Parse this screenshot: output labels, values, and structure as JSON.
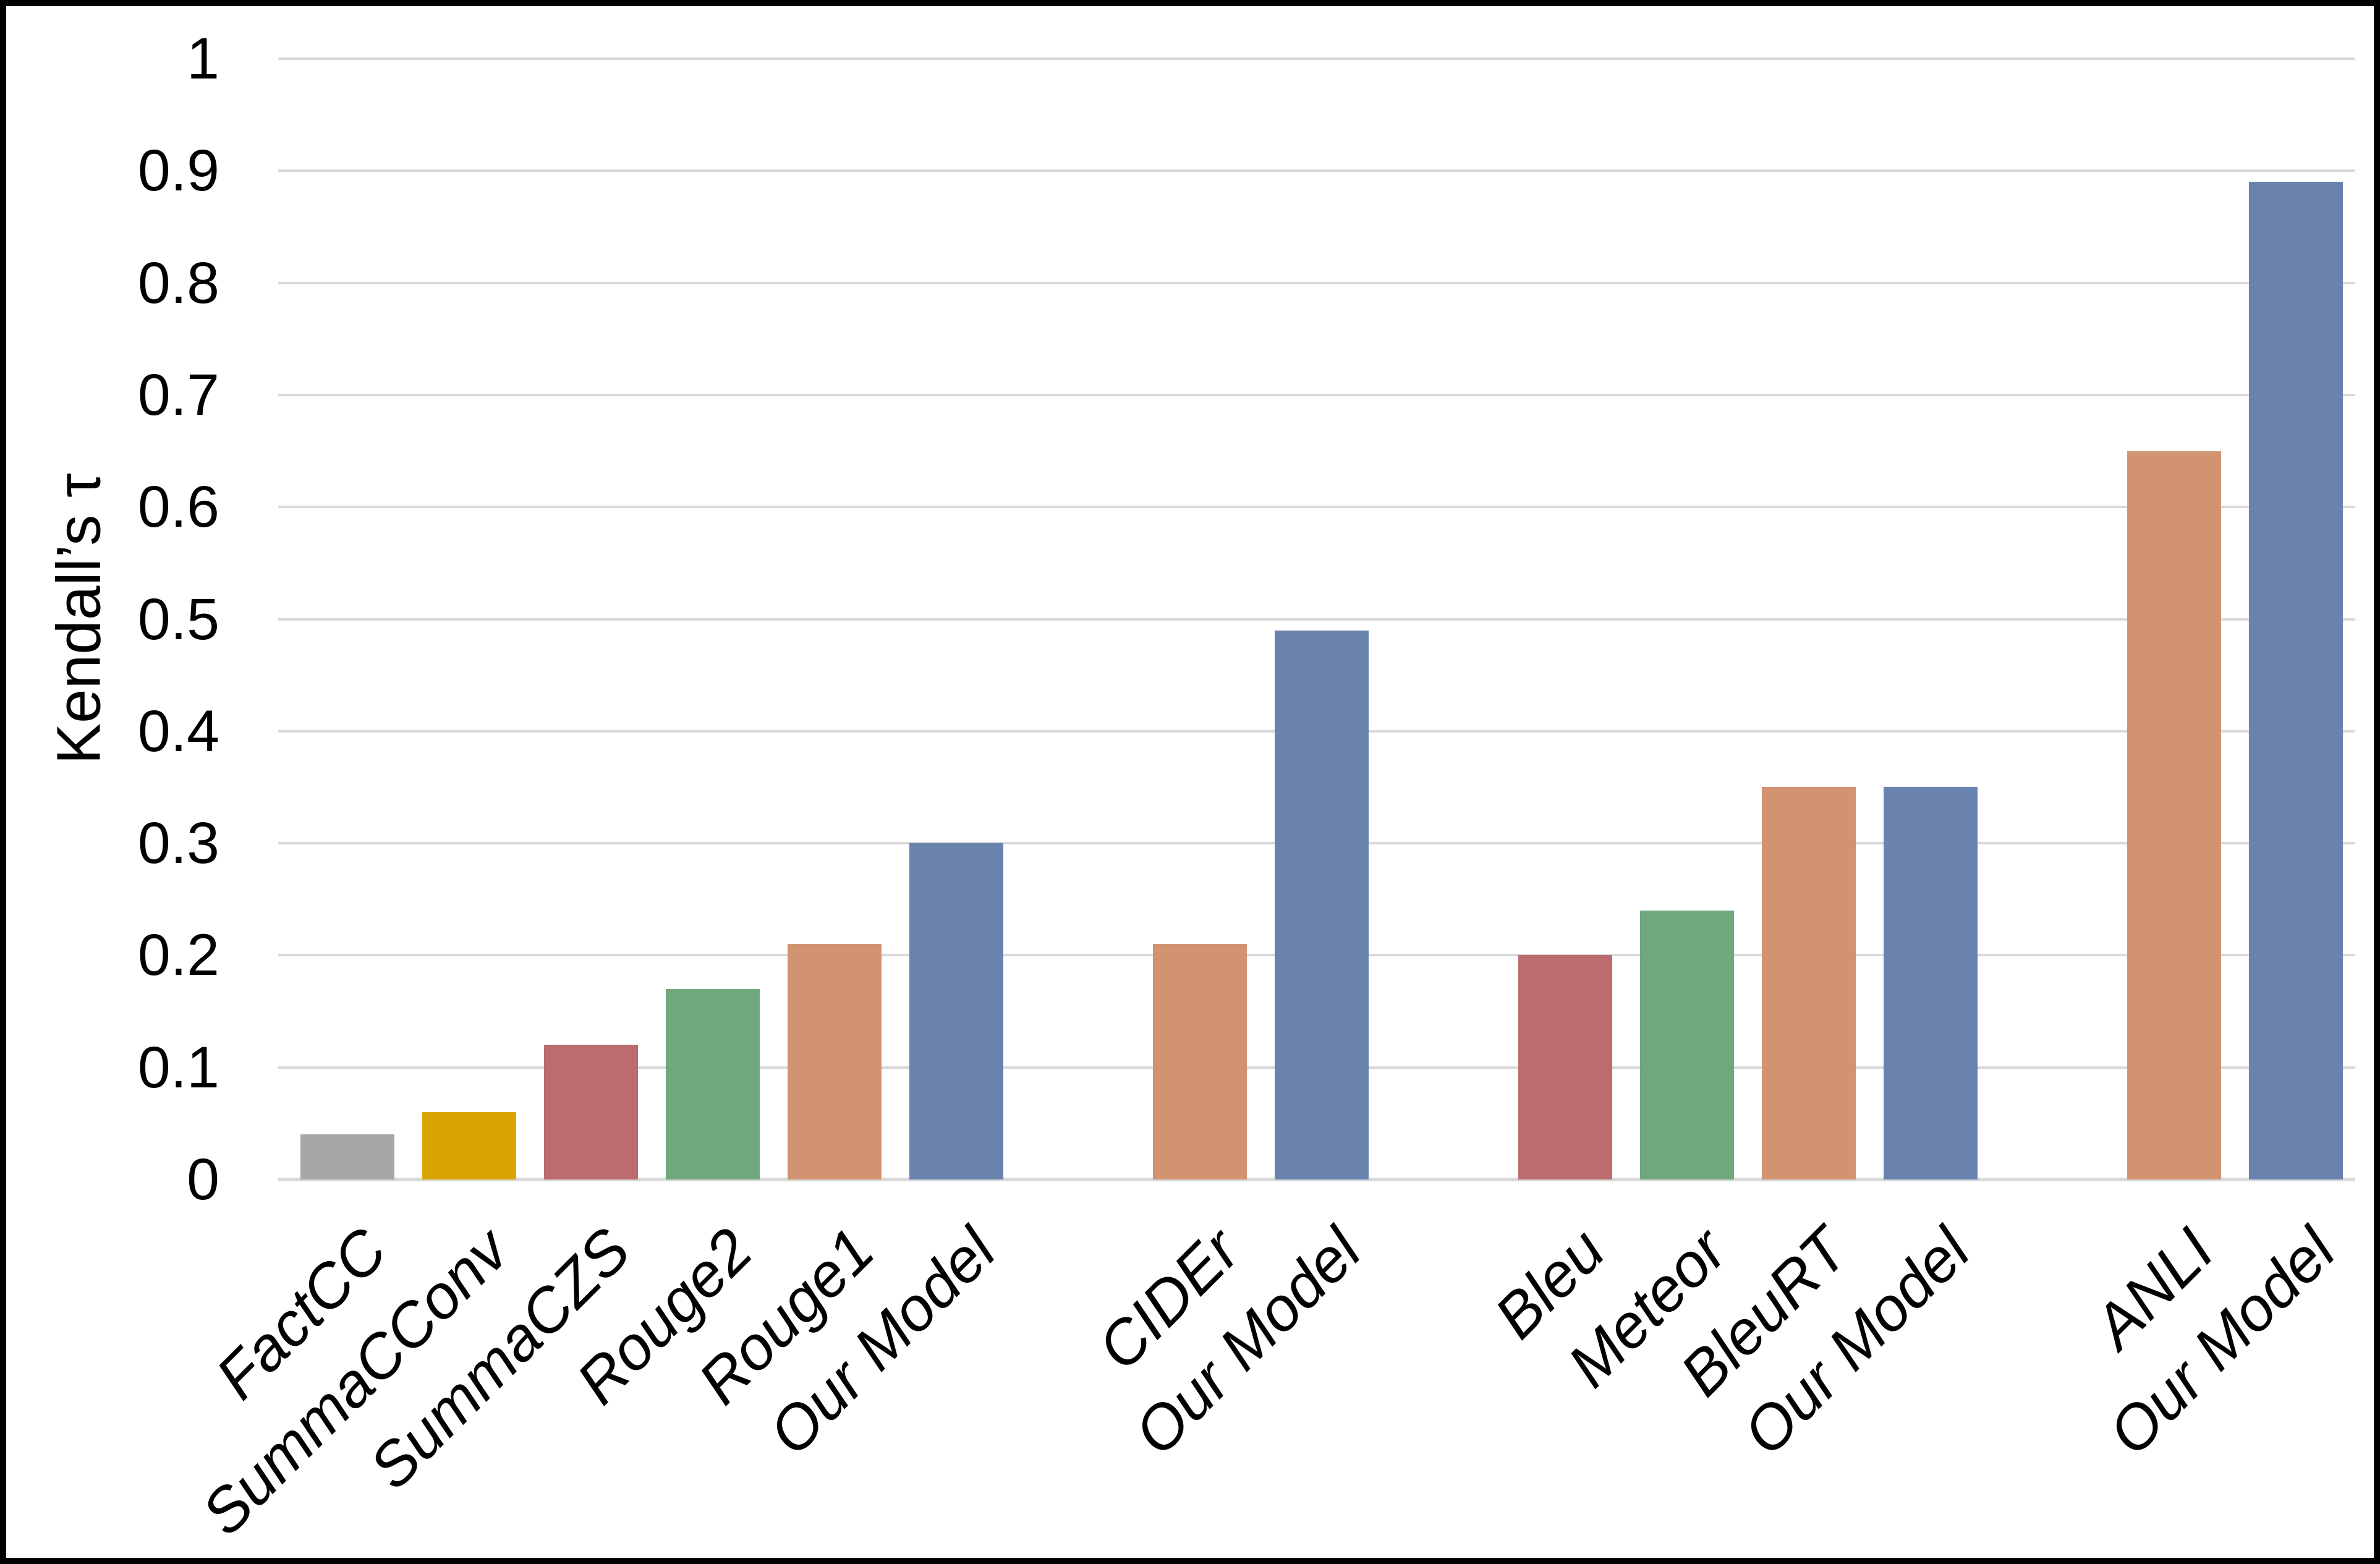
{
  "figure": {
    "background": "#ffffff",
    "border_color": "#000000",
    "gridline_color": "#d9d9d9",
    "axis_line_color": "#d9d9d9",
    "text_color": "#000000"
  },
  "chart_data": {
    "type": "bar",
    "title": "",
    "ylabel": "Kendall’s τ",
    "xlabel": "",
    "ylim": [
      0,
      1
    ],
    "ytick_step": 0.1,
    "yticks": [
      "1",
      "0.9",
      "0.8",
      "0.7",
      "0.6",
      "0.5",
      "0.4",
      "0.3",
      "0.2",
      "0.1",
      "0"
    ],
    "grid": true,
    "legend": "none",
    "palette": {
      "gray": "#a6a6a6",
      "gold": "#d9a400",
      "rose": "#bb6c6f",
      "green": "#70a77d",
      "tan": "#d29470",
      "blue": "#6a83ae"
    },
    "groups": [
      {
        "bars": [
          {
            "label": "FactCC",
            "value": 0.04,
            "color": "gray"
          },
          {
            "label": "SummaCConv",
            "value": 0.06,
            "color": "gold"
          },
          {
            "label": "SummaCZS",
            "value": 0.12,
            "color": "rose"
          },
          {
            "label": "Rouge2",
            "value": 0.17,
            "color": "green"
          },
          {
            "label": "Rouge1",
            "value": 0.21,
            "color": "tan"
          },
          {
            "label": "Our Model",
            "value": 0.3,
            "color": "blue"
          }
        ]
      },
      {
        "bars": [
          {
            "label": "CIDEr",
            "value": 0.21,
            "color": "tan"
          },
          {
            "label": "Our Model",
            "value": 0.49,
            "color": "blue"
          }
        ]
      },
      {
        "bars": [
          {
            "label": "Bleu",
            "value": 0.2,
            "color": "rose"
          },
          {
            "label": "Meteor",
            "value": 0.24,
            "color": "green"
          },
          {
            "label": "BleuRT",
            "value": 0.35,
            "color": "tan"
          },
          {
            "label": "Our Model",
            "value": 0.35,
            "color": "blue"
          }
        ]
      },
      {
        "bars": [
          {
            "label": "ANLI",
            "value": 0.65,
            "color": "tan"
          },
          {
            "label": "Our Model",
            "value": 0.89,
            "color": "blue"
          }
        ]
      }
    ]
  }
}
